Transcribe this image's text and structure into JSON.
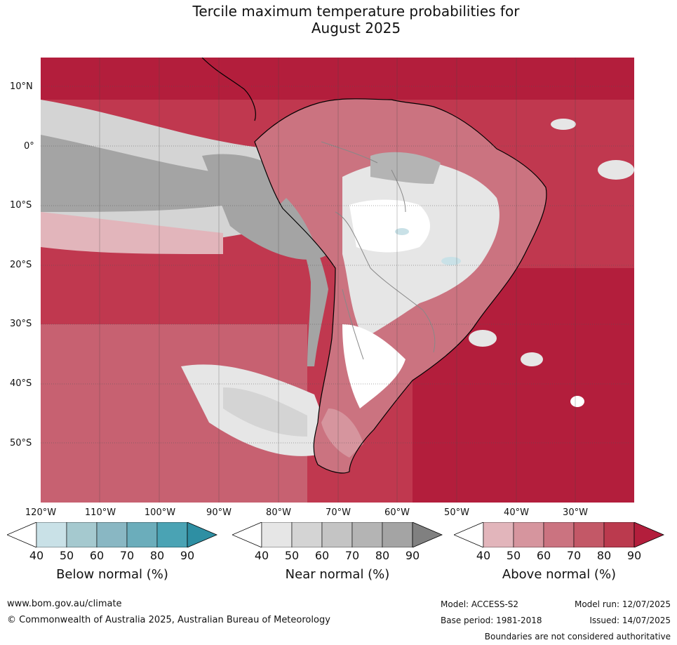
{
  "title_line1": "Tercile maximum temperature probabilities for",
  "title_line2": "August 2025",
  "lat_labels": [
    "10°N",
    "0°",
    "10°S",
    "20°S",
    "30°S",
    "40°S",
    "50°S"
  ],
  "lon_labels": [
    "120°W",
    "110°W",
    "100°W",
    "90°W",
    "80°W",
    "70°W",
    "60°W",
    "50°W",
    "40°W",
    "30°W"
  ],
  "colorbars": [
    {
      "name": "Below normal (%)",
      "colors": [
        "#c9e1e7",
        "#a5c9cf",
        "#89b7c3",
        "#6badbb",
        "#4aa3b4",
        "#2e8fa3"
      ],
      "ticks": [
        "40",
        "50",
        "60",
        "70",
        "80",
        "90"
      ]
    },
    {
      "name": "Near normal (%)",
      "colors": [
        "#e6e6e6",
        "#d4d4d4",
        "#c4c4c4",
        "#b4b4b4",
        "#a4a4a4",
        "#808080"
      ],
      "ticks": [
        "40",
        "50",
        "60",
        "70",
        "80",
        "90"
      ]
    },
    {
      "name": "Above normal (%)",
      "colors": [
        "#e2b5bb",
        "#d6959e",
        "#cb7380",
        "#c35867",
        "#bb3a4e",
        "#b31e3c"
      ],
      "ticks": [
        "40",
        "50",
        "60",
        "70",
        "80",
        "90"
      ]
    }
  ],
  "footer": {
    "website": "www.bom.gov.au/climate",
    "copyright": "© Commonwealth of Australia 2025, Australian Bureau of Meteorology",
    "model": "Model: ACCESS-S2",
    "model_run": "Model run: 12/07/2025",
    "base_period": "Base period: 1981-2018",
    "issued": "Issued: 14/07/2025",
    "disclaimer": "Boundaries are not considered authoritative"
  }
}
